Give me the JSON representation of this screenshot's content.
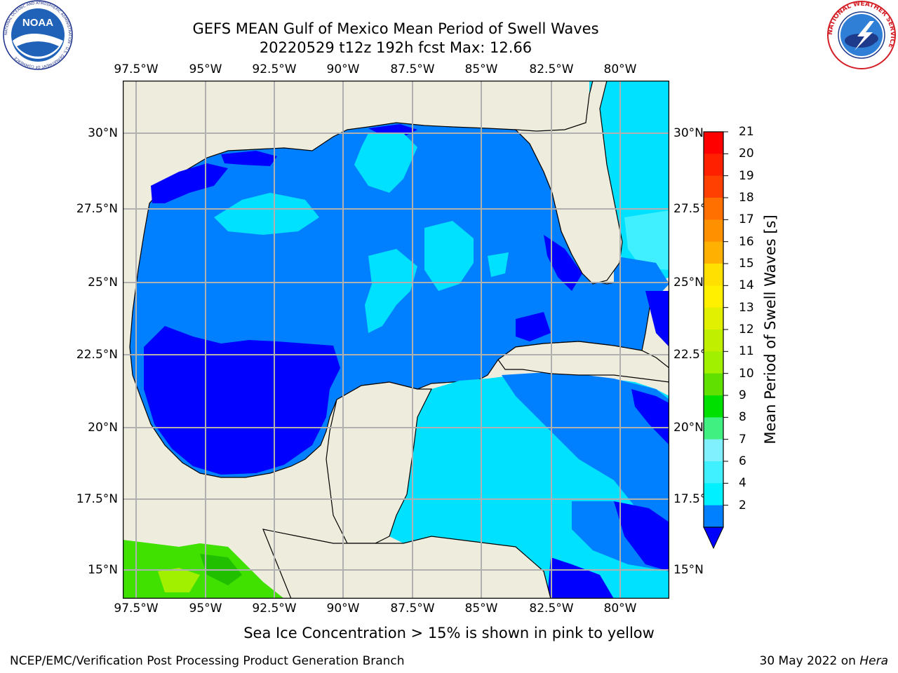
{
  "title": {
    "line1": "GEFS MEAN Gulf of Mexico Mean Period of Swell Waves",
    "line2": "20220529 t12z 192h fcst   Max: 12.66"
  },
  "longitude_labels": [
    "97.5°W",
    "95°W",
    "92.5°W",
    "90°W",
    "87.5°W",
    "85°W",
    "82.5°W",
    "80°W"
  ],
  "latitude_labels_left": [
    "30°N",
    "27.5°N",
    "25°N",
    "22.5°N",
    "20°N",
    "17.5°N",
    "15°N"
  ],
  "latitude_labels_right": [
    "30°N",
    "27.5°N",
    "25°N",
    "22.5°N",
    "20°N",
    "17.5°N",
    "15°N"
  ],
  "colorbar": {
    "label": "Mean Period of Swell Waves [s]",
    "ticks": [
      "21",
      "20",
      "19",
      "18",
      "17",
      "16",
      "15",
      "14",
      "13",
      "12",
      "11",
      "10",
      "9",
      "8",
      "7",
      "6",
      "4",
      "2"
    ]
  },
  "footer": {
    "ice_note": "Sea Ice Concentration > 15% is shown in pink to yellow",
    "branch": "NCEP/EMC/Verification Post Processing Product Generation Branch",
    "date": "30 May 2022 on ",
    "machine": "Hera"
  },
  "logos": {
    "noaa_text": "NOAA",
    "noaa_ring": "NATIONAL OCEANIC AND ATMOSPHERIC ADMINISTRATION · U.S. DEPARTMENT OF COMMERCE",
    "nws_ring": "NATIONAL WEATHER SERVICE"
  },
  "colors": {
    "land": "#eeecdc",
    "ocean_2_4": "#0080ff",
    "ocean_lt2": "#0000ff",
    "ocean_4_6": "#00e0ff",
    "ocean_6_8": "#40f0ff",
    "ice_green": "#40e000",
    "grid": "#b0b0b0"
  }
}
